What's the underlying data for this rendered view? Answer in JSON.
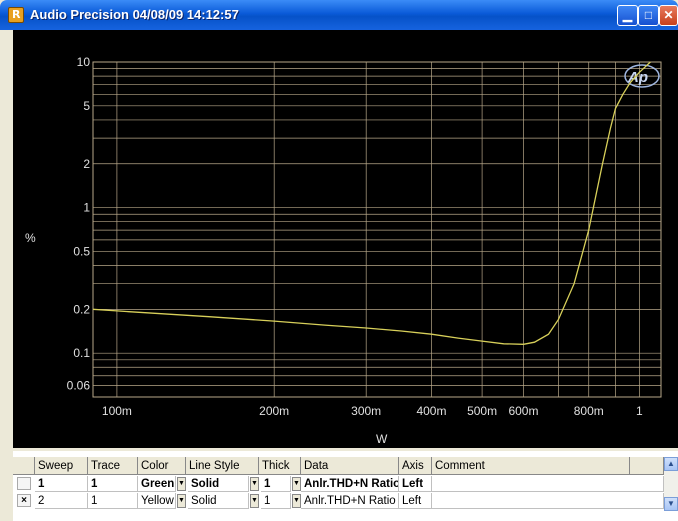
{
  "window": {
    "title": "Audio Precision  04/08/09 14:12:57",
    "icon": "app-icon",
    "controls": [
      "minimize-icon",
      "maximize-icon",
      "close-icon"
    ]
  },
  "logo_text": "Ap",
  "chart_data": {
    "type": "line",
    "title": "",
    "xlabel": "W",
    "ylabel": "%",
    "x_scale": "log",
    "y_scale": "log",
    "xlim": [
      0.09,
      1.1
    ],
    "ylim": [
      0.05,
      10
    ],
    "x_ticks": [
      "100m",
      "200m",
      "300m",
      "400m",
      "500m",
      "600m",
      "800m",
      "1"
    ],
    "x_tick_values": [
      0.1,
      0.2,
      0.3,
      0.4,
      0.5,
      0.6,
      0.8,
      1.0
    ],
    "y_ticks": [
      "10",
      "5",
      "2",
      "1",
      "0.5",
      "0.2",
      "0.1",
      "0.06"
    ],
    "y_tick_values": [
      10,
      5,
      2,
      1,
      0.5,
      0.2,
      0.1,
      0.06
    ],
    "grid": true,
    "background": "#000000",
    "grid_color": "#b8a88a",
    "series": [
      {
        "color": "#d8d05a",
        "x": [
          0.09,
          0.1,
          0.15,
          0.2,
          0.25,
          0.3,
          0.35,
          0.4,
          0.45,
          0.5,
          0.55,
          0.6,
          0.63,
          0.67,
          0.7,
          0.75,
          0.8,
          0.85,
          0.88,
          0.9,
          0.93,
          0.96,
          1.0,
          1.05
        ],
        "y": [
          0.2,
          0.195,
          0.178,
          0.166,
          0.156,
          0.149,
          0.142,
          0.135,
          0.127,
          0.121,
          0.116,
          0.115,
          0.119,
          0.135,
          0.17,
          0.3,
          0.7,
          2.0,
          3.5,
          4.8,
          6.0,
          7.2,
          8.5,
          10.0
        ]
      }
    ]
  },
  "table": {
    "headers": [
      "Sweep",
      "Trace",
      "Color",
      "Line Style",
      "Thick",
      "Data",
      "Axis",
      "Comment"
    ],
    "rows": [
      {
        "checked": "",
        "sweep": "1",
        "trace": "1",
        "color": "Green",
        "line_style": "Solid",
        "thick": "1",
        "data": "Anlr.THD+N Ratio",
        "axis": "Left",
        "comment": ""
      },
      {
        "checked": "×",
        "sweep": "2",
        "trace": "1",
        "color": "Yellow",
        "line_style": "Solid",
        "thick": "1",
        "data": "Anlr.THD+N Ratio",
        "axis": "Left",
        "comment": ""
      }
    ]
  }
}
